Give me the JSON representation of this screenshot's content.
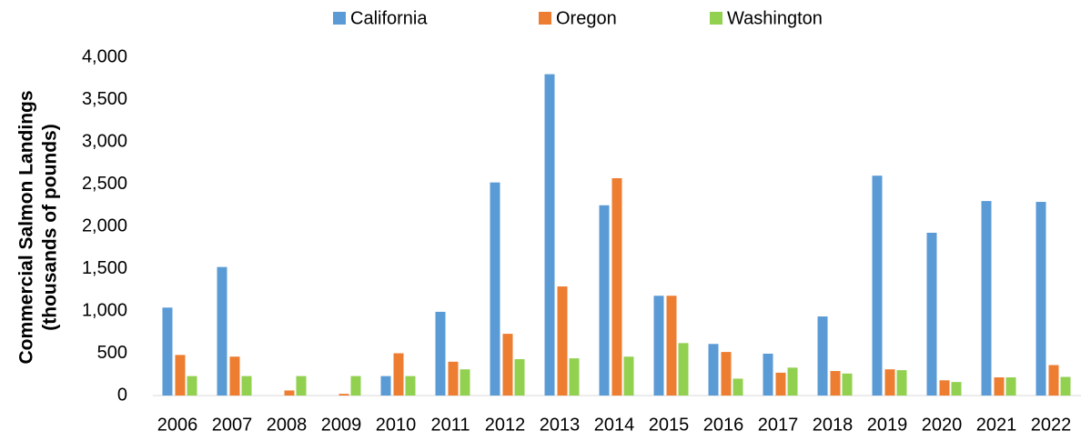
{
  "chart_data": {
    "type": "bar",
    "y_label": [
      "Commercial Salmon Landings",
      "(thousands of pounds)"
    ],
    "categories": [
      "2006",
      "2007",
      "2008",
      "2009",
      "2010",
      "2011",
      "2012",
      "2013",
      "2014",
      "2015",
      "2016",
      "2017",
      "2018",
      "2019",
      "2020",
      "2021",
      "2022"
    ],
    "series": [
      {
        "name": "California",
        "color": "#5b9bd5",
        "values": [
          1040,
          1520,
          0,
          0,
          230,
          990,
          2520,
          3800,
          2250,
          1180,
          610,
          495,
          935,
          2600,
          1925,
          2300,
          2290
        ]
      },
      {
        "name": "Oregon",
        "color": "#ed7d31",
        "values": [
          480,
          460,
          60,
          20,
          500,
          400,
          730,
          1290,
          2570,
          1180,
          515,
          270,
          290,
          310,
          180,
          215,
          360
        ]
      },
      {
        "name": "Washington",
        "color": "#92d050",
        "values": [
          230,
          230,
          230,
          230,
          230,
          310,
          430,
          440,
          460,
          620,
          200,
          330,
          260,
          300,
          160,
          215,
          220
        ]
      }
    ],
    "ylim": [
      0,
      4000
    ],
    "yticks": [
      0,
      500,
      {
        "value": 1000,
        "label": "1,000"
      },
      {
        "value": 1500,
        "label": "1,500"
      },
      {
        "value": 2000,
        "label": "2,000"
      },
      {
        "value": 2500,
        "label": "2,500"
      },
      {
        "value": 3000,
        "label": "3,000"
      },
      {
        "value": 3500,
        "label": "3,500"
      },
      {
        "value": 4000,
        "label": "4,000"
      }
    ],
    "legend": "top"
  }
}
